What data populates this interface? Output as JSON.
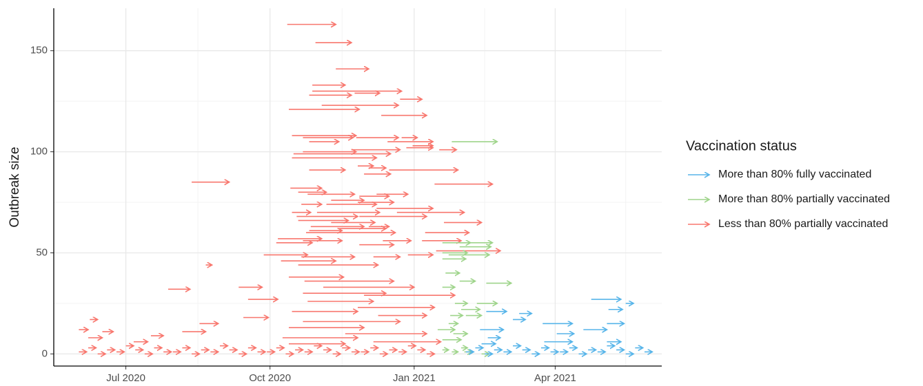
{
  "chart_data": {
    "type": "arrow",
    "y_label": "Outbreak size",
    "legend_title": "Vaccination status",
    "legend": "right",
    "grid": true,
    "xlim": [
      "2020-05-16",
      "2021-06-08"
    ],
    "xticks": [
      {
        "value": "2020-07-01",
        "label": "Jul 2020"
      },
      {
        "value": "2020-10-01",
        "label": "Oct 2020"
      },
      {
        "value": "2021-01-01",
        "label": "Jan 2021"
      },
      {
        "value": "2021-04-01",
        "label": "Apr 2021"
      }
    ],
    "xticks_minor": [
      "2020-08-16",
      "2020-11-16",
      "2021-02-15",
      "2021-05-16"
    ],
    "ylim": [
      -6,
      171
    ],
    "yticks": [
      0,
      50,
      100,
      150
    ],
    "yticks_minor": [
      25,
      75,
      125
    ],
    "series": [
      {
        "name": "More than 80% fully vaccinated",
        "color": "#56b4e9",
        "start": [
          "2021-02-12",
          "2021-02-16",
          "2021-03-05",
          "2021-03-09",
          "2021-03-24",
          "2021-04-02",
          "2021-03-25",
          "2021-04-24",
          "2021-05-16",
          "2021-04-19",
          "2021-05-05",
          "2021-05-04",
          "2021-05-04",
          "2021-02-17",
          "2021-02-13",
          "2021-02-03",
          "2021-02-09",
          "2021-02-15",
          "2021-02-21",
          "2021-02-27",
          "2021-03-05",
          "2021-03-11",
          "2021-03-17",
          "2021-03-23",
          "2021-03-29",
          "2021-04-04",
          "2021-04-10",
          "2021-04-16",
          "2021-04-22",
          "2021-04-28",
          "2021-05-04",
          "2021-05-10",
          "2021-05-16",
          "2021-05-22",
          "2021-05-28"
        ],
        "end": [
          "2021-02-27",
          "2021-03-01",
          "2021-03-13",
          "2021-03-17",
          "2021-04-12",
          "2021-04-13",
          "2021-04-12",
          "2021-05-13",
          "2021-05-21",
          "2021-05-04",
          "2021-05-14",
          "2021-05-15",
          "2021-05-13",
          "2021-02-25",
          "2021-02-22",
          "2021-02-08",
          "2021-02-14",
          "2021-02-20",
          "2021-02-26",
          "2021-03-04",
          "2021-03-10",
          "2021-03-16",
          "2021-03-22",
          "2021-03-28",
          "2021-04-03",
          "2021-04-09",
          "2021-04-15",
          "2021-04-21",
          "2021-04-27",
          "2021-05-03",
          "2021-05-09",
          "2021-05-15",
          "2021-05-21",
          "2021-05-27",
          "2021-06-02"
        ],
        "values": [
          12,
          21,
          17,
          20,
          15,
          10,
          6,
          27,
          25,
          12,
          22,
          15,
          6,
          8,
          5,
          1,
          3,
          0,
          2,
          1,
          4,
          2,
          0,
          3,
          1,
          1,
          3,
          0,
          2,
          1,
          4,
          2,
          0,
          3,
          1
        ]
      },
      {
        "name": "More than 80% partially vaccinated",
        "color": "#9ed48a",
        "start": [
          "2021-01-25",
          "2021-01-19",
          "2021-01-30",
          "2021-01-30",
          "2021-01-19",
          "2021-01-19",
          "2021-01-23",
          "2021-01-21",
          "2021-01-30",
          "2021-02-16",
          "2021-01-19",
          "2021-01-27",
          "2021-02-10",
          "2021-01-31",
          "2021-01-24",
          "2021-02-03",
          "2021-01-23",
          "2021-01-16",
          "2021-01-26",
          "2021-01-19",
          "2021-01-19",
          "2021-01-25",
          "2021-01-31",
          "2021-02-02",
          "2021-02-13"
        ],
        "end": [
          "2021-02-23",
          "2021-02-06",
          "2021-02-20",
          "2021-02-19",
          "2021-02-04",
          "2021-02-03",
          "2021-02-18",
          "2021-01-30",
          "2021-02-09",
          "2021-03-04",
          "2021-01-27",
          "2021-02-04",
          "2021-02-23",
          "2021-02-12",
          "2021-02-01",
          "2021-02-13",
          "2021-01-29",
          "2021-01-27",
          "2021-02-04",
          "2021-01-31",
          "2021-01-23",
          "2021-01-29",
          "2021-02-04",
          "2021-02-07",
          "2021-02-18"
        ],
        "values": [
          105,
          55,
          55,
          53,
          50,
          47,
          49,
          40,
          36,
          35,
          33,
          25,
          25,
          22,
          19,
          19,
          15,
          12,
          10,
          7,
          2,
          1,
          3,
          1,
          0
        ]
      },
      {
        "name": "Less than 80% partially vaccinated",
        "color": "#f8766d",
        "start": [
          "2020-10-12",
          "2020-10-30",
          "2020-11-12",
          "2020-10-28",
          "2020-10-28",
          "2020-11-24",
          "2020-10-26",
          "2020-10-13",
          "2020-11-03",
          "2020-12-23",
          "2020-12-11",
          "2020-10-15",
          "2020-10-22",
          "2020-11-25",
          "2020-12-24",
          "2020-10-26",
          "2020-12-15",
          "2020-12-31",
          "2020-10-22",
          "2020-11-22",
          "2020-12-27",
          "2021-01-17",
          "2020-10-16",
          "2020-10-15",
          "2020-11-26",
          "2020-10-26",
          "2020-12-03",
          "2020-12-16",
          "2020-11-30",
          "2021-01-14",
          "2020-10-14",
          "2020-10-19",
          "2020-10-25",
          "2020-11-27",
          "2020-12-08",
          "2020-11-09",
          "2020-10-21",
          "2020-11-06",
          "2020-11-26",
          "2020-12-08",
          "2020-10-15",
          "2020-10-31",
          "2020-12-21",
          "2020-10-18",
          "2020-11-27",
          "2020-10-19",
          "2020-11-09",
          "2021-01-20",
          "2020-10-27",
          "2020-11-14",
          "2020-12-03",
          "2020-10-26",
          "2020-10-24",
          "2021-01-08",
          "2020-10-06",
          "2020-10-22",
          "2020-12-12",
          "2021-01-06",
          "2020-10-05",
          "2020-11-27",
          "2021-01-15",
          "2020-09-27",
          "2020-10-21",
          "2020-12-06",
          "2020-12-28",
          "2020-10-08",
          "2020-10-19",
          "2020-08-21",
          "2020-08-12",
          "2020-07-28",
          "2020-09-11",
          "2020-09-17",
          "2020-08-17",
          "2020-08-06",
          "2020-09-14",
          "2020-06-08",
          "2020-06-16",
          "2020-06-07",
          "2020-06-01",
          "2020-07-06",
          "2020-07-17",
          "2020-10-13",
          "2020-10-23",
          "2020-11-04",
          "2020-10-22",
          "2020-11-30",
          "2020-10-25",
          "2020-11-26",
          "2020-10-15",
          "2020-12-09",
          "2020-10-22",
          "2020-10-13",
          "2020-11-18",
          "2020-10-09",
          "2020-12-06",
          "2020-10-13",
          "2020-06-01",
          "2020-06-07",
          "2020-06-13",
          "2020-06-19",
          "2020-06-25",
          "2020-07-01",
          "2020-07-07",
          "2020-07-13",
          "2020-07-19",
          "2020-07-25",
          "2020-07-31",
          "2020-08-06",
          "2020-08-12",
          "2020-08-18",
          "2020-08-24",
          "2020-08-30",
          "2020-09-05",
          "2020-09-11",
          "2020-09-17",
          "2020-09-23",
          "2020-09-29",
          "2020-10-05",
          "2020-10-11",
          "2020-10-17",
          "2020-10-23",
          "2020-10-29",
          "2020-11-04",
          "2020-11-10",
          "2020-11-16",
          "2020-11-22",
          "2020-11-28",
          "2020-12-04",
          "2020-12-10",
          "2020-12-16",
          "2020-12-22",
          "2020-12-28",
          "2021-01-03",
          "2021-01-09"
        ],
        "end": [
          "2020-11-12",
          "2020-11-22",
          "2020-12-03",
          "2020-11-18",
          "2020-12-24",
          "2020-12-10",
          "2020-11-22",
          "2020-11-27",
          "2020-12-22",
          "2021-01-06",
          "2021-01-09",
          "2020-11-25",
          "2020-11-23",
          "2020-12-22",
          "2021-01-03",
          "2020-11-14",
          "2021-01-13",
          "2021-01-13",
          "2020-11-25",
          "2020-12-23",
          "2021-01-13",
          "2021-01-28",
          "2020-12-17",
          "2020-12-08",
          "2020-12-06",
          "2020-11-18",
          "2020-12-14",
          "2021-01-29",
          "2020-12-17",
          "2021-02-20",
          "2020-11-03",
          "2020-11-06",
          "2020-11-24",
          "2020-12-16",
          "2020-12-28",
          "2020-11-30",
          "2020-11-03",
          "2020-12-08",
          "2020-12-19",
          "2021-01-13",
          "2020-10-27",
          "2020-12-10",
          "2021-02-02",
          "2020-11-26",
          "2021-01-09",
          "2020-11-20",
          "2020-12-07",
          "2021-02-13",
          "2020-11-30",
          "2020-12-14",
          "2020-12-16",
          "2020-11-16",
          "2020-12-20",
          "2021-02-05",
          "2020-11-03",
          "2020-11-16",
          "2020-12-30",
          "2021-01-31",
          "2020-10-28",
          "2020-12-19",
          "2021-02-25",
          "2020-10-25",
          "2020-11-24",
          "2020-12-23",
          "2021-01-13",
          "2020-11-12",
          "2020-12-09",
          "2020-08-25",
          "2020-09-05",
          "2020-08-11",
          "2020-09-26",
          "2020-10-06",
          "2020-08-29",
          "2020-08-21",
          "2020-09-30",
          "2020-06-13",
          "2020-06-23",
          "2020-06-16",
          "2020-06-07",
          "2020-07-15",
          "2020-07-25",
          "2020-11-17",
          "2020-12-19",
          "2021-01-01",
          "2020-12-14",
          "2021-01-27",
          "2020-12-06",
          "2021-01-14",
          "2020-11-26",
          "2021-01-09",
          "2020-12-23",
          "2020-11-30",
          "2021-01-09",
          "2020-11-26",
          "2021-01-18",
          "2020-11-18",
          "2020-06-06",
          "2020-06-12",
          "2020-06-18",
          "2020-06-24",
          "2020-06-30",
          "2020-07-06",
          "2020-07-12",
          "2020-07-18",
          "2020-07-24",
          "2020-07-30",
          "2020-08-05",
          "2020-08-11",
          "2020-08-17",
          "2020-08-23",
          "2020-08-29",
          "2020-09-04",
          "2020-09-10",
          "2020-09-16",
          "2020-09-22",
          "2020-09-28",
          "2020-10-04",
          "2020-10-10",
          "2020-10-16",
          "2020-10-22",
          "2020-10-28",
          "2020-11-03",
          "2020-11-09",
          "2020-11-15",
          "2020-11-21",
          "2020-11-27",
          "2020-12-03",
          "2020-12-09",
          "2020-12-15",
          "2020-12-21",
          "2020-12-27",
          "2021-01-02",
          "2021-01-08",
          "2021-01-14"
        ],
        "values": [
          163,
          154,
          141,
          133,
          130,
          129,
          128,
          121,
          123,
          126,
          118,
          108,
          107,
          107,
          107,
          105,
          105,
          103,
          100,
          101,
          102,
          101,
          99,
          97,
          93,
          91,
          92,
          91,
          89,
          84,
          82,
          80,
          79,
          78,
          79,
          76,
          74,
          74,
          75,
          72,
          70,
          70,
          70,
          68,
          68,
          66,
          65,
          65,
          63,
          62,
          63,
          61,
          60,
          60,
          57,
          56,
          56,
          56,
          55,
          54,
          51,
          49,
          48,
          48,
          49,
          46,
          44,
          44,
          85,
          32,
          33,
          27,
          15,
          11,
          18,
          17,
          11,
          8,
          12,
          6,
          9,
          38,
          36,
          33,
          30,
          29,
          26,
          23,
          21,
          19,
          16,
          13,
          10,
          8,
          6,
          5,
          1,
          3,
          0,
          2,
          1,
          4,
          2,
          0,
          3,
          1,
          1,
          3,
          0,
          2,
          1,
          4,
          2,
          0,
          3,
          1,
          1,
          3,
          0,
          2,
          1,
          4,
          2,
          0,
          3,
          1,
          1,
          3,
          0,
          2,
          1,
          4,
          2,
          0
        ]
      }
    ]
  }
}
